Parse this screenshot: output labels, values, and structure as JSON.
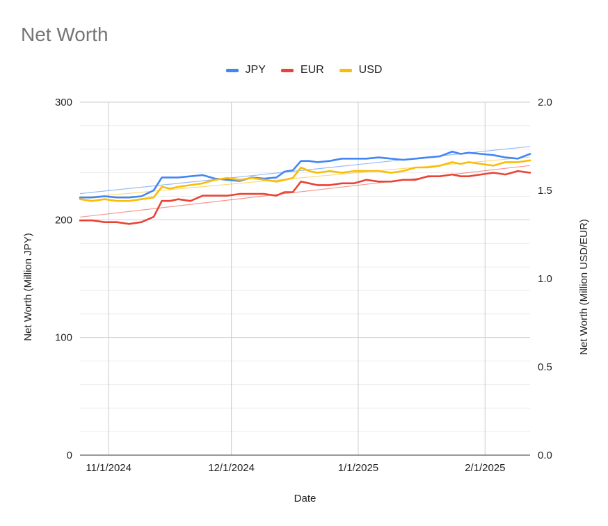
{
  "chart_data": {
    "type": "line",
    "title": "Net Worth",
    "xlabel": "Date",
    "ylabel_left": "Net Worth (Million JPY)",
    "ylabel_right": "Net Worth (Million USD/EUR)",
    "ylim_left": [
      0,
      300
    ],
    "ylim_right": [
      0,
      2.0
    ],
    "y_ticks_left": [
      "0",
      "100",
      "200",
      "300"
    ],
    "y_ticks_right": [
      "0.0",
      "0.5",
      "1.0",
      "1.5",
      "2.0"
    ],
    "x_range": [
      "2024-10-25",
      "2025-02-12"
    ],
    "x_tick_labels": [
      "11/1/2024",
      "12/1/2024",
      "1/1/2025",
      "2/1/2025"
    ],
    "x_ticks": [
      "2024-11-01",
      "2024-12-01",
      "2025-01-01",
      "2025-02-01"
    ],
    "legend_position": "top",
    "trendlines": true,
    "grid": true,
    "series": [
      {
        "name": "JPY",
        "color": "#4285f4",
        "axis": "left",
        "dates": [
          "2024-10-25",
          "2024-10-28",
          "2024-10-31",
          "2024-11-03",
          "2024-11-06",
          "2024-11-09",
          "2024-11-12",
          "2024-11-14",
          "2024-11-16",
          "2024-11-18",
          "2024-11-21",
          "2024-11-24",
          "2024-11-27",
          "2024-11-30",
          "2024-12-03",
          "2024-12-06",
          "2024-12-09",
          "2024-12-12",
          "2024-12-14",
          "2024-12-16",
          "2024-12-18",
          "2024-12-20",
          "2024-12-22",
          "2024-12-25",
          "2024-12-28",
          "2024-12-31",
          "2025-01-03",
          "2025-01-06",
          "2025-01-09",
          "2025-01-12",
          "2025-01-15",
          "2025-01-18",
          "2025-01-21",
          "2025-01-24",
          "2025-01-26",
          "2025-01-28",
          "2025-01-31",
          "2025-02-03",
          "2025-02-06",
          "2025-02-09",
          "2025-02-12"
        ],
        "values": [
          219,
          219,
          220,
          219,
          219,
          220,
          225,
          236,
          236,
          236,
          237,
          238,
          235,
          234,
          233,
          236,
          235,
          236,
          241,
          242,
          250,
          250,
          249,
          250,
          252,
          252,
          252,
          253,
          252,
          251,
          252,
          253,
          254,
          258,
          256,
          257,
          256,
          255,
          253,
          252,
          256
        ]
      },
      {
        "name": "EUR",
        "color": "#ea4335",
        "axis": "right",
        "dates": [
          "2024-10-25",
          "2024-10-28",
          "2024-10-31",
          "2024-11-03",
          "2024-11-06",
          "2024-11-09",
          "2024-11-12",
          "2024-11-14",
          "2024-11-16",
          "2024-11-18",
          "2024-11-21",
          "2024-11-24",
          "2024-11-27",
          "2024-11-30",
          "2024-12-03",
          "2024-12-06",
          "2024-12-09",
          "2024-12-12",
          "2024-12-14",
          "2024-12-16",
          "2024-12-18",
          "2024-12-20",
          "2024-12-22",
          "2024-12-25",
          "2024-12-28",
          "2024-12-31",
          "2025-01-03",
          "2025-01-06",
          "2025-01-09",
          "2025-01-12",
          "2025-01-15",
          "2025-01-18",
          "2025-01-21",
          "2025-01-24",
          "2025-01-26",
          "2025-01-28",
          "2025-01-31",
          "2025-02-03",
          "2025-02-06",
          "2025-02-09",
          "2025-02-12"
        ],
        "values": [
          1.33,
          1.33,
          1.32,
          1.32,
          1.31,
          1.32,
          1.35,
          1.44,
          1.44,
          1.45,
          1.44,
          1.47,
          1.47,
          1.47,
          1.48,
          1.48,
          1.48,
          1.47,
          1.49,
          1.49,
          1.55,
          1.54,
          1.53,
          1.53,
          1.54,
          1.54,
          1.56,
          1.55,
          1.55,
          1.56,
          1.56,
          1.58,
          1.58,
          1.59,
          1.58,
          1.58,
          1.59,
          1.6,
          1.59,
          1.61,
          1.6
        ]
      },
      {
        "name": "USD",
        "color": "#fbbc04",
        "axis": "right",
        "dates": [
          "2024-10-25",
          "2024-10-28",
          "2024-10-31",
          "2024-11-03",
          "2024-11-06",
          "2024-11-09",
          "2024-11-12",
          "2024-11-14",
          "2024-11-16",
          "2024-11-18",
          "2024-11-21",
          "2024-11-24",
          "2024-11-27",
          "2024-11-30",
          "2024-12-03",
          "2024-12-06",
          "2024-12-09",
          "2024-12-12",
          "2024-12-14",
          "2024-12-16",
          "2024-12-18",
          "2024-12-20",
          "2024-12-22",
          "2024-12-25",
          "2024-12-28",
          "2024-12-31",
          "2025-01-03",
          "2025-01-06",
          "2025-01-09",
          "2025-01-12",
          "2025-01-15",
          "2025-01-18",
          "2025-01-21",
          "2025-01-24",
          "2025-01-26",
          "2025-01-28",
          "2025-01-31",
          "2025-02-03",
          "2025-02-06",
          "2025-02-09",
          "2025-02-12"
        ],
        "values": [
          1.45,
          1.44,
          1.45,
          1.44,
          1.44,
          1.45,
          1.46,
          1.52,
          1.51,
          1.52,
          1.53,
          1.54,
          1.56,
          1.57,
          1.56,
          1.57,
          1.56,
          1.55,
          1.56,
          1.57,
          1.63,
          1.61,
          1.6,
          1.61,
          1.6,
          1.61,
          1.61,
          1.61,
          1.6,
          1.61,
          1.63,
          1.63,
          1.64,
          1.66,
          1.65,
          1.66,
          1.65,
          1.64,
          1.66,
          1.66,
          1.67
        ]
      }
    ]
  }
}
